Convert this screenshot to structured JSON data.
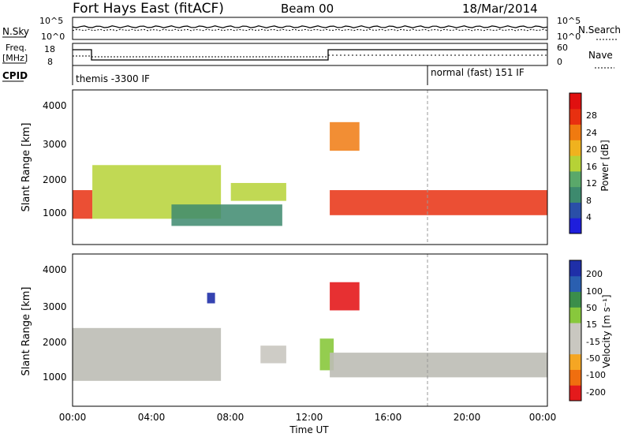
{
  "header": {
    "station": "Fort Hays East (fitACF)",
    "beam": "Beam 00",
    "date": "18/Mar/2014"
  },
  "noise_panel": {
    "left_label": "N.Sky",
    "right_label": "N.Search",
    "left_ticks": [
      "10^5",
      "10^0"
    ],
    "right_ticks": [
      "10^5",
      "10^0"
    ]
  },
  "freq_panel": {
    "left_label_1": "Freq.",
    "left_label_2": "[MHz]",
    "left_ticks": [
      "18",
      "8"
    ],
    "right_ticks": [
      "60",
      "0"
    ],
    "right_label": "Nave",
    "cpid_label": "CPID",
    "cpid_modes": [
      "themis -3300 IF",
      "normal (fast) 151 IF"
    ]
  },
  "power_panel": {
    "ylabel": "Slant Range [km]",
    "yticks": [
      "4000",
      "3000",
      "2000",
      "1000"
    ],
    "colorbar_label": "Power [dB]",
    "colorbar_ticks": [
      "28",
      "24",
      "20",
      "16",
      "12",
      "8",
      "4"
    ]
  },
  "velocity_panel": {
    "ylabel": "Slant Range [km]",
    "yticks": [
      "4000",
      "3000",
      "2000",
      "1000"
    ],
    "colorbar_label": "Velocity [m s⁻¹]",
    "colorbar_ticks": [
      "200",
      "100",
      "50",
      "15",
      "-15",
      "-50",
      "-100",
      "-200"
    ]
  },
  "xaxis": {
    "label": "Time UT",
    "ticks": [
      "00:00",
      "04:00",
      "08:00",
      "12:00",
      "16:00",
      "20:00",
      "00:00"
    ]
  },
  "colors": {
    "power_scale": [
      "#1e1edc",
      "#2a4fa8",
      "#3d8a6e",
      "#5aa86a",
      "#b6d236",
      "#f0b21e",
      "#f07a10",
      "#e83010",
      "#e01010"
    ],
    "velocity_scale": [
      "#e41a1c",
      "#f06e0f",
      "#f5a623",
      "#c9c7c0",
      "#c9c7c0",
      "#88c83c",
      "#3b8e4a",
      "#2a5fb0",
      "#1f2fa8"
    ],
    "ground_scatter": "#bdbdb5"
  },
  "chart_data": [
    {
      "type": "heatmap",
      "title": "",
      "xlabel": "Time UT",
      "ylabel": "Slant Range [km]",
      "xlim": [
        "00:00",
        "24:00"
      ],
      "ylim": [
        180,
        4500
      ],
      "colorbar": {
        "label": "Power [dB]",
        "range": [
          0,
          30
        ]
      },
      "echo_regions": [
        {
          "t_start": 0.0,
          "t_end": 1.0,
          "range_start": 900,
          "range_end": 1700,
          "power_db": 26
        },
        {
          "t_start": 1.0,
          "t_end": 7.5,
          "range_start": 900,
          "range_end": 2400,
          "power_db": 14
        },
        {
          "t_start": 8.0,
          "t_end": 10.8,
          "range_start": 1400,
          "range_end": 1900,
          "power_db": 16
        },
        {
          "t_start": 5.0,
          "t_end": 10.6,
          "range_start": 700,
          "range_end": 1300,
          "power_db": 8
        },
        {
          "t_start": 13.0,
          "t_end": 24.0,
          "range_start": 1000,
          "range_end": 1700,
          "power_db": 24
        },
        {
          "t_start": 13.0,
          "t_end": 14.5,
          "range_start": 2800,
          "range_end": 3600,
          "power_db": 20
        }
      ]
    },
    {
      "type": "heatmap",
      "title": "",
      "xlabel": "Time UT",
      "ylabel": "Slant Range [km]",
      "xlim": [
        "00:00",
        "24:00"
      ],
      "ylim": [
        180,
        4500
      ],
      "colorbar": {
        "label": "Velocity [m s⁻¹]",
        "range": [
          -200,
          200
        ]
      },
      "echo_regions": [
        {
          "t_start": 0.0,
          "t_end": 7.5,
          "range_start": 900,
          "range_end": 2400,
          "velocity": 0
        },
        {
          "t_start": 9.5,
          "t_end": 10.8,
          "range_start": 1400,
          "range_end": 1900,
          "velocity": -50
        },
        {
          "t_start": 12.5,
          "t_end": 13.2,
          "range_start": 1200,
          "range_end": 2100,
          "velocity": 40
        },
        {
          "t_start": 13.0,
          "t_end": 14.5,
          "range_start": 2900,
          "range_end": 3700,
          "velocity": -200
        },
        {
          "t_start": 13.0,
          "t_end": 24.0,
          "range_start": 1000,
          "range_end": 1700,
          "velocity": 0
        },
        {
          "t_start": 6.8,
          "t_end": 7.2,
          "range_start": 3100,
          "range_end": 3400,
          "velocity": 200
        }
      ]
    }
  ]
}
